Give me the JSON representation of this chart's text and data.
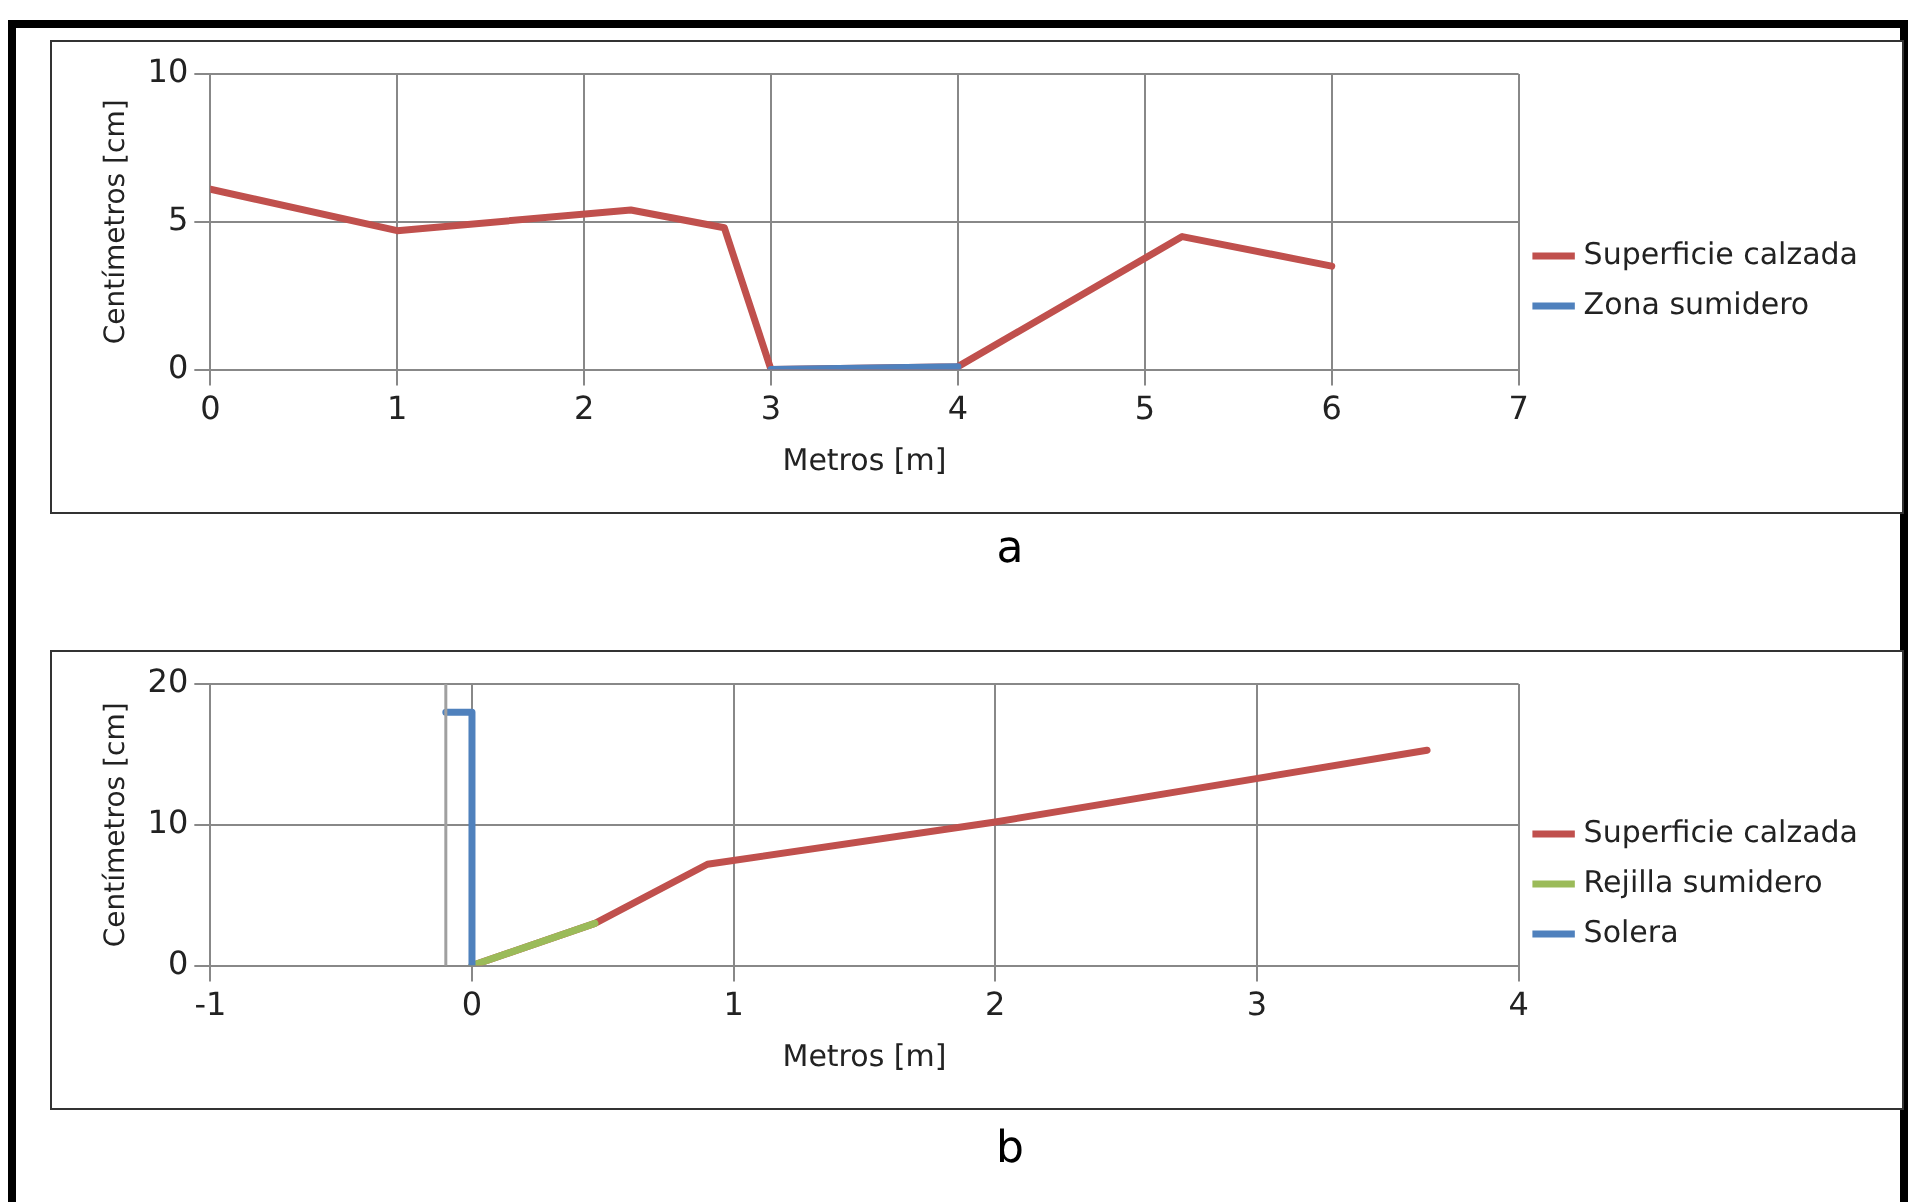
{
  "chart_data": [
    {
      "type": "line",
      "xlabel": "Metros [m]",
      "ylabel": "Centímetros [cm]",
      "annotations": [
        "a"
      ],
      "xlim": [
        0,
        7
      ],
      "xticks": [
        0,
        1,
        2,
        3,
        4,
        5,
        6,
        7
      ],
      "ylim": [
        0,
        10
      ],
      "yticks": [
        0,
        5,
        10
      ],
      "grid": true,
      "legend": "right",
      "marker": "none",
      "line_style": "solid",
      "series": [
        {
          "name": "Superficie calzada",
          "color": "#c0504d",
          "x": [
            0,
            1,
            2.25,
            2.75,
            3,
            4,
            5.2,
            6
          ],
          "values": [
            6.1,
            4.7,
            5.4,
            4.8,
            0,
            0.1,
            4.5,
            3.5
          ]
        },
        {
          "name": "Zona sumidero",
          "color": "#4f81bd",
          "x": [
            3,
            4
          ],
          "values": [
            0,
            0.1
          ]
        }
      ]
    },
    {
      "type": "line",
      "xlabel": "Metros [m]",
      "ylabel": "Centímetros [cm]",
      "annotations": [
        "b"
      ],
      "xlim": [
        -1,
        4
      ],
      "xticks": [
        -1,
        0,
        1,
        2,
        3,
        4
      ],
      "ylim": [
        0,
        20
      ],
      "yticks": [
        0,
        10,
        20
      ],
      "grid": true,
      "legend": "right",
      "marker": "none",
      "line_style": "solid",
      "ref_lines": [
        {
          "axis": "x",
          "value": -0.1,
          "color": "#a0a0a0"
        }
      ],
      "series": [
        {
          "name": "Superficie calzada",
          "color": "#c0504d",
          "x": [
            0,
            0.47,
            0.9,
            2,
            3.65
          ],
          "values": [
            0,
            3,
            7.2,
            10.2,
            15.3
          ]
        },
        {
          "name": "Rejilla sumidero",
          "color": "#9bbb59",
          "x": [
            0,
            0.47
          ],
          "values": [
            0,
            3
          ]
        },
        {
          "name": "Solera",
          "color": "#4f81bd",
          "x": [
            -0.1,
            0,
            0
          ],
          "values": [
            18,
            18,
            0
          ]
        }
      ]
    }
  ]
}
